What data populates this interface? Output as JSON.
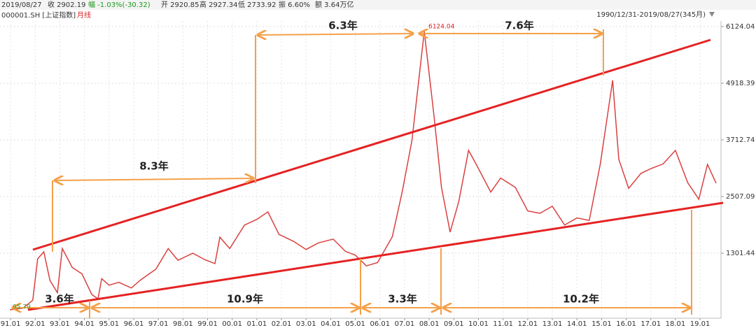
{
  "header": {
    "date": "2019/08/27",
    "close": "收 2902.19",
    "change": "幅 -1.03%(-30.32)",
    "open": "开 2920.85",
    "high": "高 2927.34",
    "low": "低 2733.92",
    "amplitude": "振 6.60%",
    "amount": "额 3.64万亿",
    "symbol": "000001.SH [上证指数]",
    "period": "月线",
    "range": "1990/12/31-2019/08/27(345月)"
  },
  "chart_data": {
    "type": "line",
    "series": [
      {
        "color": "#d94040",
        "x": [
          1990.97,
          1991.5,
          1991.9,
          1992.1,
          1992.35,
          1992.6,
          1992.9,
          1993.1,
          1993.5,
          1993.9,
          1994.3,
          1994.55,
          1994.7,
          1995.0,
          1995.4,
          1995.9,
          1996.3,
          1996.9,
          1997.4,
          1997.8,
          1998.4,
          1998.9,
          1999.3,
          1999.5,
          1999.9,
          2000.5,
          2001.0,
          2001.45,
          2001.9,
          2002.5,
          2003.0,
          2003.5,
          2004.1,
          2004.6,
          2005.0,
          2005.45,
          2005.9,
          2006.5,
          2006.9,
          2007.3,
          2007.8,
          2008.2,
          2008.5,
          2008.85,
          2009.2,
          2009.6,
          2009.9,
          2010.5,
          2010.9,
          2011.5,
          2012.0,
          2012.5,
          2013.0,
          2013.5,
          2014.0,
          2014.5,
          2014.95,
          2015.45,
          2015.7,
          2016.1,
          2016.6,
          2017.0,
          2017.5,
          2018.0,
          2018.5,
          2018.95,
          2019.3,
          2019.65
        ],
        "values": [
          96,
          130,
          300,
          1180,
          1330,
          720,
          460,
          1400,
          1000,
          860,
          420,
          330,
          760,
          620,
          680,
          560,
          740,
          960,
          1400,
          1150,
          1300,
          1160,
          1080,
          1640,
          1400,
          1900,
          2020,
          2180,
          1700,
          1550,
          1380,
          1520,
          1600,
          1340,
          1260,
          1030,
          1100,
          1650,
          2600,
          3700,
          6020,
          4200,
          2700,
          1750,
          2400,
          3490,
          3200,
          2600,
          2900,
          2700,
          2200,
          2150,
          2300,
          1900,
          2050,
          2000,
          3200,
          4980,
          3300,
          2680,
          3000,
          3100,
          3200,
          3490,
          2800,
          2450,
          3190,
          2790
        ]
      }
    ],
    "xlim": [
      1990.57,
      2019.85
    ],
    "xticks": [
      {
        "value": 1991,
        "label": "91.01"
      },
      {
        "value": 1992,
        "label": "92.01"
      },
      {
        "value": 1993,
        "label": "93.01"
      },
      {
        "value": 1994,
        "label": "94.01"
      },
      {
        "value": 1995,
        "label": "95.01"
      },
      {
        "value": 1996,
        "label": "96.01"
      },
      {
        "value": 1997,
        "label": "97.01"
      },
      {
        "value": 1998,
        "label": "98.01"
      },
      {
        "value": 1999,
        "label": "99.01"
      },
      {
        "value": 2000,
        "label": "00.01"
      },
      {
        "value": 2001,
        "label": "01.01"
      },
      {
        "value": 2002,
        "label": "02.01"
      },
      {
        "value": 2003,
        "label": "03.01"
      },
      {
        "value": 2004,
        "label": "04.01"
      },
      {
        "value": 2005,
        "label": "05.01"
      },
      {
        "value": 2006,
        "label": "06.01"
      },
      {
        "value": 2007,
        "label": "07.01"
      },
      {
        "value": 2008,
        "label": "08.01"
      },
      {
        "value": 2009,
        "label": "09.01"
      },
      {
        "value": 2010,
        "label": "10.01"
      },
      {
        "value": 2011,
        "label": "11.01"
      },
      {
        "value": 2012,
        "label": "12.01"
      },
      {
        "value": 2013,
        "label": "13.01"
      },
      {
        "value": 2014,
        "label": "14.01"
      },
      {
        "value": 2015,
        "label": "15.01"
      },
      {
        "value": 2016,
        "label": "16.01"
      },
      {
        "value": 2017,
        "label": "17.01"
      },
      {
        "value": 2018,
        "label": "18.01"
      },
      {
        "value": 2019,
        "label": "19.01"
      }
    ],
    "ylim": [
      -83,
      6243
    ],
    "yticks": [
      1301.44,
      2507.09,
      3712.74,
      4918.39,
      6124.04
    ],
    "grid": true,
    "high_label": 6124.04,
    "low_label": 95.79,
    "annotations": [
      "8.3年",
      "6.3年",
      "7.6年",
      "3.6年",
      "10.9年",
      "3.3年",
      "10.2年"
    ]
  }
}
